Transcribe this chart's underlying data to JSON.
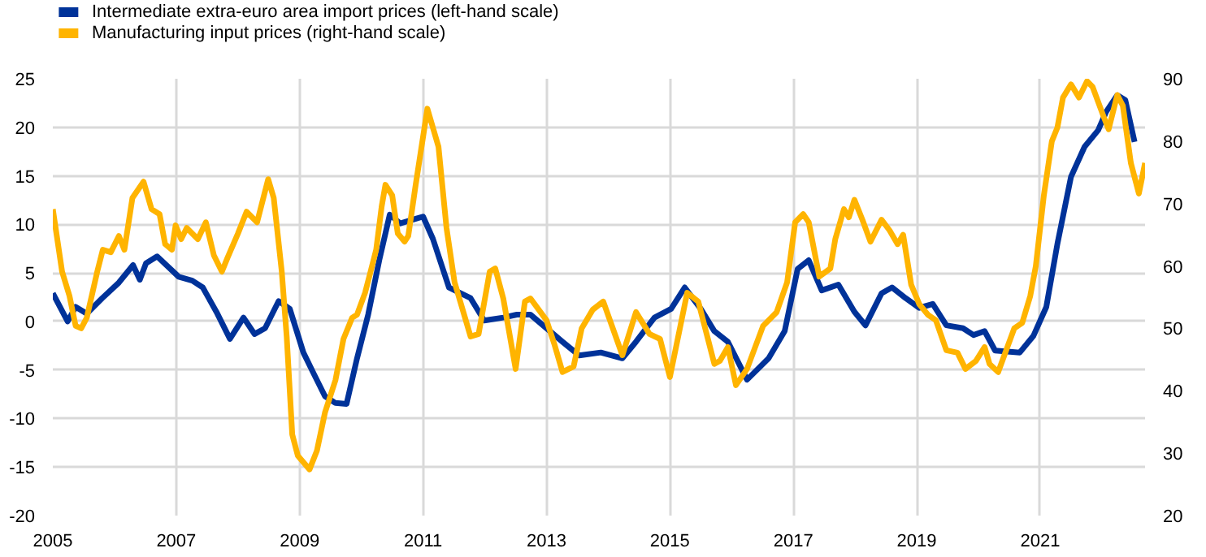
{
  "chart_data": {
    "type": "line",
    "xlim": [
      2005,
      2022.7
    ],
    "xticks": [
      2005,
      2007,
      2009,
      2011,
      2013,
      2015,
      2017,
      2019,
      2021
    ],
    "ylim": [
      -20,
      25
    ],
    "yticks": [
      -20,
      -15,
      -10,
      -5,
      0,
      5,
      10,
      15,
      20,
      25
    ],
    "y2lim": [
      20,
      90
    ],
    "y2ticks": [
      20,
      30,
      40,
      50,
      60,
      70,
      80,
      90
    ],
    "grid": true,
    "legend": "top left",
    "line_style": "solid",
    "marker": "none",
    "series": [
      {
        "name": "Intermediate extra-euro area import prices (left-hand scale)",
        "color": "#003299",
        "x": [
          2005.0,
          2005.24,
          2005.37,
          2005.55,
          2005.8,
          2006.07,
          2006.3,
          2006.41,
          2006.51,
          2006.69,
          2007.04,
          2007.26,
          2007.43,
          2007.65,
          2007.87,
          2008.09,
          2008.27,
          2008.44,
          2008.66,
          2008.84,
          2009.06,
          2009.23,
          2009.41,
          2009.58,
          2009.76,
          2009.93,
          2010.11,
          2010.29,
          2010.46,
          2010.63,
          2011.0,
          2011.16,
          2011.42,
          2011.77,
          2011.99,
          2012.3,
          2012.52,
          2012.74,
          2013.0,
          2013.26,
          2013.53,
          2013.88,
          2014.23,
          2014.45,
          2014.75,
          2015.02,
          2015.24,
          2015.5,
          2015.72,
          2015.94,
          2016.25,
          2016.6,
          2016.86,
          2017.07,
          2017.25,
          2017.46,
          2017.73,
          2017.99,
          2018.17,
          2018.43,
          2018.6,
          2018.82,
          2019.04,
          2019.26,
          2019.48,
          2019.75,
          2019.92,
          2020.1,
          2020.27,
          2020.67,
          2020.89,
          2021.1,
          2021.28,
          2021.5,
          2021.72,
          2021.94,
          2022.07,
          2022.25,
          2022.38,
          2022.53
        ],
        "values": [
          2.9,
          0.0,
          1.5,
          0.8,
          2.4,
          4.0,
          5.8,
          4.3,
          6.0,
          6.7,
          4.6,
          4.2,
          3.5,
          1.0,
          -1.8,
          0.4,
          -1.3,
          -0.7,
          2.1,
          1.3,
          -3.2,
          -5.4,
          -7.7,
          -8.4,
          -8.5,
          -3.8,
          0.7,
          6.3,
          11.0,
          10.1,
          10.8,
          8.5,
          3.5,
          2.4,
          0.1,
          0.4,
          0.7,
          0.7,
          -0.7,
          -2.1,
          -3.5,
          -3.2,
          -3.8,
          -2.1,
          0.4,
          1.3,
          3.5,
          1.3,
          -1.0,
          -2.1,
          -6.0,
          -3.8,
          -1.0,
          5.4,
          6.3,
          3.2,
          3.8,
          1.0,
          -0.4,
          2.9,
          3.5,
          2.4,
          1.4,
          1.8,
          -0.4,
          -0.7,
          -1.4,
          -1.0,
          -3.0,
          -3.2,
          -1.5,
          1.5,
          8.0,
          14.9,
          18.0,
          19.7,
          21.6,
          23.3,
          22.8,
          18.5
        ]
      },
      {
        "name": "Manufacturing input prices (right-hand scale)",
        "color": "#ffb400",
        "axis": "y2",
        "x": [
          2005.0,
          2005.15,
          2005.27,
          2005.37,
          2005.46,
          2005.55,
          2005.72,
          2005.81,
          2005.94,
          2006.07,
          2006.16,
          2006.29,
          2006.47,
          2006.6,
          2006.73,
          2006.82,
          2006.93,
          2006.99,
          2007.08,
          2007.17,
          2007.35,
          2007.48,
          2007.61,
          2007.74,
          2007.83,
          2008.0,
          2008.14,
          2008.31,
          2008.49,
          2008.58,
          2008.71,
          2008.79,
          2008.88,
          2008.97,
          2009.16,
          2009.28,
          2009.41,
          2009.58,
          2009.71,
          2009.85,
          2009.93,
          2010.06,
          2010.15,
          2010.24,
          2010.33,
          2010.39,
          2010.5,
          2010.59,
          2010.7,
          2010.76,
          2010.88,
          2011.07,
          2011.25,
          2011.38,
          2011.51,
          2011.77,
          2011.9,
          2012.08,
          2012.17,
          2012.3,
          2012.5,
          2012.65,
          2012.74,
          2013.0,
          2013.13,
          2013.26,
          2013.44,
          2013.57,
          2013.75,
          2013.92,
          2014.23,
          2014.45,
          2014.67,
          2014.84,
          2015.0,
          2015.17,
          2015.28,
          2015.46,
          2015.72,
          2015.81,
          2015.94,
          2016.07,
          2016.25,
          2016.51,
          2016.73,
          2016.9,
          2017.03,
          2017.16,
          2017.25,
          2017.42,
          2017.6,
          2017.68,
          2017.82,
          2017.9,
          2017.99,
          2018.12,
          2018.25,
          2018.43,
          2018.56,
          2018.69,
          2018.78,
          2018.91,
          2019.04,
          2019.18,
          2019.31,
          2019.48,
          2019.66,
          2019.79,
          2019.96,
          2020.1,
          2020.18,
          2020.32,
          2020.58,
          2020.71,
          2020.84,
          2020.93,
          2021.06,
          2021.19,
          2021.28,
          2021.37,
          2021.5,
          2021.63,
          2021.76,
          2021.85,
          2022.03,
          2022.11,
          2022.25,
          2022.34,
          2022.47,
          2022.6,
          2022.7
        ],
        "values": [
          69.1,
          59.1,
          55.2,
          50.4,
          50.0,
          51.7,
          59.1,
          62.6,
          62.2,
          64.8,
          62.6,
          70.9,
          73.5,
          69.1,
          68.3,
          63.5,
          62.6,
          66.5,
          64.3,
          66.1,
          64.3,
          67.0,
          61.7,
          59.1,
          61.3,
          65.2,
          68.7,
          67.0,
          73.9,
          70.9,
          59.1,
          48.7,
          33.0,
          29.6,
          27.4,
          30.4,
          36.5,
          41.7,
          48.3,
          51.7,
          52.2,
          55.7,
          59.1,
          62.6,
          69.6,
          73.0,
          71.3,
          65.2,
          63.9,
          64.8,
          73.0,
          85.2,
          79.1,
          66.1,
          57.4,
          48.7,
          49.1,
          59.1,
          59.6,
          54.8,
          43.5,
          54.3,
          54.8,
          51.3,
          47.4,
          43.0,
          43.9,
          50.0,
          53.0,
          54.3,
          45.7,
          52.6,
          49.1,
          48.3,
          42.2,
          50.4,
          55.7,
          54.3,
          44.3,
          44.8,
          47.0,
          40.9,
          43.5,
          50.4,
          52.6,
          57.4,
          67.0,
          68.3,
          67.0,
          58.3,
          59.6,
          64.3,
          69.1,
          67.8,
          70.6,
          67.4,
          63.9,
          67.4,
          65.7,
          63.5,
          65.0,
          57.0,
          53.9,
          52.2,
          51.3,
          46.5,
          46.1,
          43.5,
          44.8,
          47.0,
          44.3,
          43.0,
          50.0,
          50.9,
          55.2,
          60.0,
          71.3,
          80.0,
          82.2,
          87.0,
          89.1,
          87.0,
          89.6,
          88.7,
          83.9,
          81.9,
          87.4,
          85.7,
          76.5,
          71.6,
          76.5
        ]
      }
    ]
  }
}
